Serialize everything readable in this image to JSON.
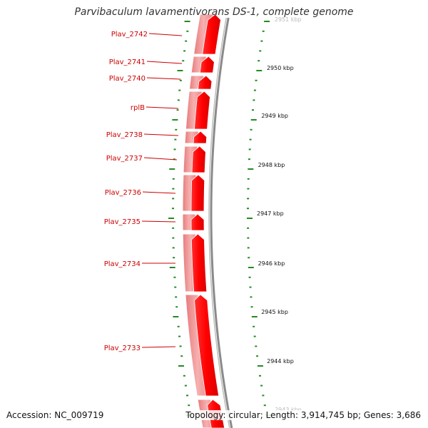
{
  "header": {
    "title": "Parvibaculum lavamentivorans DS-1, complete genome"
  },
  "footer": {
    "accession": "Accession: NC_009719",
    "summary": "Topology: circular; Length: 3,914,745 bp; Genes: 3,686"
  },
  "genes": [
    {
      "label": "Plav_2742"
    },
    {
      "label": "Plav_2741"
    },
    {
      "label": "Plav_2740"
    },
    {
      "label": "rplB"
    },
    {
      "label": "Plav_2738"
    },
    {
      "label": "Plav_2737"
    },
    {
      "label": "Plav_2736"
    },
    {
      "label": "Plav_2735"
    },
    {
      "label": "Plav_2734"
    },
    {
      "label": "Plav_2733"
    }
  ],
  "scale": {
    "ticks": [
      {
        "label": "2951 kbp",
        "faded": true
      },
      {
        "label": "2950 kbp"
      },
      {
        "label": "2949 kbp"
      },
      {
        "label": "2948 kbp"
      },
      {
        "label": "2947 kbp"
      },
      {
        "label": "2946 kbp"
      },
      {
        "label": "2945 kbp"
      },
      {
        "label": "2944 kbp"
      },
      {
        "label": "2943 kbp",
        "faded": true
      }
    ]
  },
  "colors": {
    "cds": "#ff0000",
    "gene": "#f08080",
    "backbone": "#888888",
    "tick": "#228b22",
    "label": "#cc0000"
  }
}
